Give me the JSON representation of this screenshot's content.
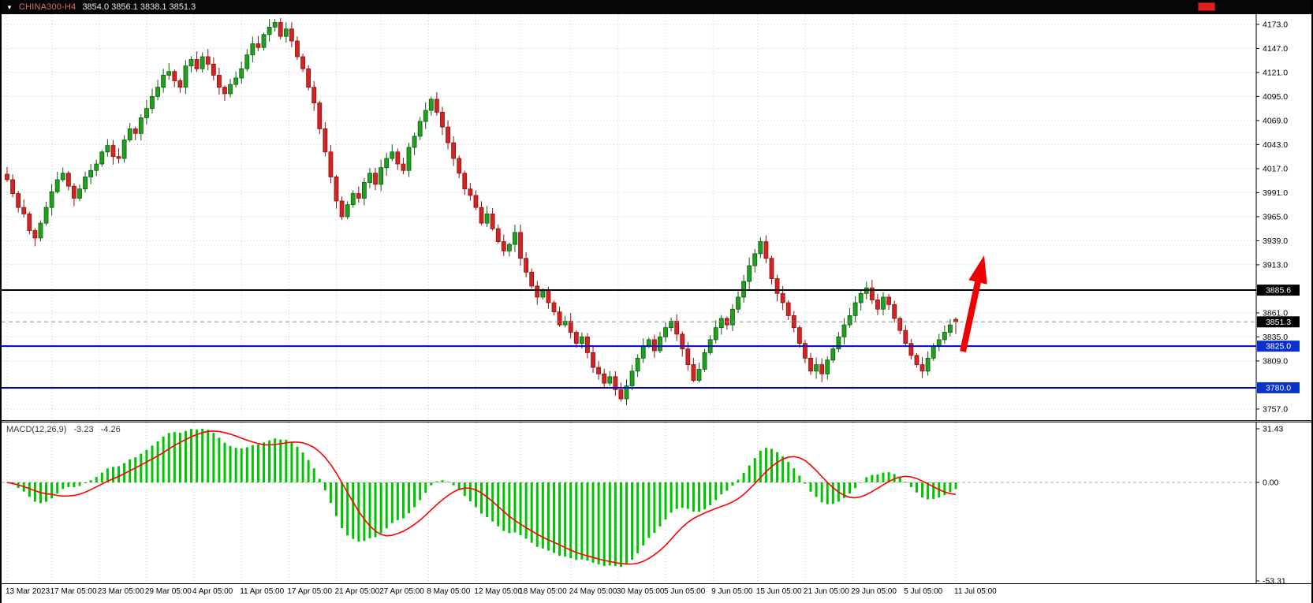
{
  "window": {
    "topbar": {
      "dropdown_icon": "▼",
      "symbol": "CHINA300-H4",
      "ohlc_text": "3854.0 3856.1 3838.1 3851.3"
    }
  },
  "chart_data": [
    {
      "type": "candlestick",
      "title": "CHINA300-H4 price chart with support/resistance levels and breakout arrow",
      "timeframe": "H4",
      "bull_color": "#1fa11f",
      "bull_stroke": "#0b5d0b",
      "bear_color": "#d32424",
      "bear_stroke": "#8f0f0f",
      "grid_color": "#c9c9c9",
      "y_range": [
        3745,
        4184
      ],
      "y_ticks": [
        "4173.0",
        "4147.0",
        "4121.0",
        "4095.0",
        "4069.0",
        "4043.0",
        "4017.0",
        "3991.0",
        "3965.0",
        "3939.0",
        "3913.0",
        "3861.0",
        "3835.0",
        "3809.0",
        "3757.0"
      ],
      "x_ticks": [
        {
          "label": "13 Mar 2023",
          "index": 0
        },
        {
          "label": "17 Mar 05:00",
          "index": 8
        },
        {
          "label": "23 Mar 05:00",
          "index": 16.5
        },
        {
          "label": "29 Mar 05:00",
          "index": 25
        },
        {
          "label": "4 Apr 05:00",
          "index": 33.5
        },
        {
          "label": "11 Apr 05:00",
          "index": 42
        },
        {
          "label": "17 Apr 05:00",
          "index": 50.5
        },
        {
          "label": "21 Apr 05:00",
          "index": 59
        },
        {
          "label": "27 Apr 05:00",
          "index": 67
        },
        {
          "label": "8 May 05:00",
          "index": 75.5
        },
        {
          "label": "12 May 05:00",
          "index": 84
        },
        {
          "label": "18 May 05:00",
          "index": 92
        },
        {
          "label": "24 May 05:00",
          "index": 101
        },
        {
          "label": "30 May 05:00",
          "index": 109.5
        },
        {
          "label": "5 Jun 05:00",
          "index": 118
        },
        {
          "label": "9 Jun 05:00",
          "index": 126.5
        },
        {
          "label": "15 Jun 05:00",
          "index": 134.5
        },
        {
          "label": "21 Jun 05:00",
          "index": 143
        },
        {
          "label": "29 Jun 05:00",
          "index": 151.5
        },
        {
          "label": "5 Jul 05:00",
          "index": 161
        },
        {
          "label": "11 Jul 05:00",
          "index": 170
        }
      ],
      "closes": [
        4005,
        3990,
        3975,
        3968,
        3950,
        3942,
        3958,
        3975,
        3992,
        4005,
        4012,
        3998,
        3985,
        3995,
        4008,
        4015,
        4022,
        4035,
        4042,
        4030,
        4028,
        4048,
        4060,
        4055,
        4072,
        4082,
        4095,
        4105,
        4118,
        4122,
        4112,
        4105,
        4128,
        4135,
        4125,
        4138,
        4130,
        4118,
        4105,
        4098,
        4108,
        4115,
        4125,
        4140,
        4152,
        4148,
        4162,
        4170,
        4175,
        4160,
        4168,
        4155,
        4138,
        4125,
        4105,
        4088,
        4060,
        4035,
        4008,
        3982,
        3965,
        3978,
        3990,
        3985,
        4002,
        4012,
        4000,
        4018,
        4028,
        4035,
        4022,
        4015,
        4040,
        4052,
        4068,
        4080,
        4092,
        4078,
        4062,
        4045,
        4028,
        4012,
        3995,
        3988,
        3975,
        3958,
        3968,
        3952,
        3938,
        3928,
        3935,
        3948,
        3920,
        3905,
        3890,
        3878,
        3885,
        3872,
        3862,
        3848,
        3852,
        3840,
        3828,
        3835,
        3818,
        3802,
        3795,
        3785,
        3792,
        3778,
        3768,
        3782,
        3798,
        3812,
        3825,
        3832,
        3820,
        3835,
        3845,
        3852,
        3838,
        3822,
        3805,
        3788,
        3800,
        3818,
        3832,
        3845,
        3855,
        3848,
        3865,
        3878,
        3895,
        3912,
        3925,
        3938,
        3920,
        3898,
        3882,
        3872,
        3858,
        3845,
        3828,
        3812,
        3798,
        3805,
        3795,
        3810,
        3822,
        3835,
        3848,
        3858,
        3872,
        3882,
        3888,
        3875,
        3865,
        3878,
        3870,
        3855,
        3842,
        3828,
        3815,
        3805,
        3798,
        3812,
        3825,
        3832,
        3840,
        3848,
        3851.3
      ],
      "last_candle": {
        "open": 3854.0,
        "high": 3856.1,
        "low": 3838.1,
        "close": 3851.3
      },
      "levels": [
        {
          "price": 3885.6,
          "label": "3885.6",
          "line_color": "#000000",
          "badge_bg": "#000000",
          "width": 2,
          "style": "solid",
          "role": "resistance"
        },
        {
          "price": 3851.3,
          "label": "3851.3",
          "line_color": "#909090",
          "badge_bg": "#000000",
          "width": 1,
          "style": "dashed",
          "role": "current-price"
        },
        {
          "price": 3825.0,
          "label": "3825.0",
          "line_color": "#0000c8",
          "badge_bg": "#0a32c8",
          "width": 2,
          "style": "solid",
          "role": "support"
        },
        {
          "price": 3780.0,
          "label": "3780.0",
          "line_color": "#0000c8",
          "badge_bg": "#0a32c8",
          "width": 2,
          "style": "solid",
          "role": "support"
        }
      ],
      "arrow": {
        "color": "#ee0000",
        "direction": "up-right",
        "meaning": "projected bullish breakout"
      }
    },
    {
      "type": "macd",
      "label": "MACD(12,26,9)",
      "macd_value": "-3.23",
      "signal_value": "-4.26",
      "params": {
        "fast": 12,
        "slow": 26,
        "signal": 9
      },
      "y_ticks": [
        {
          "label": "31.43",
          "value": 31.43
        },
        {
          "label": "0.00",
          "value": 0
        },
        {
          "label": "-53.31",
          "value": -53.31
        }
      ],
      "histogram_color": "#00c400",
      "signal_color": "#ff0000",
      "grid_color": "#c9c9c9"
    }
  ]
}
